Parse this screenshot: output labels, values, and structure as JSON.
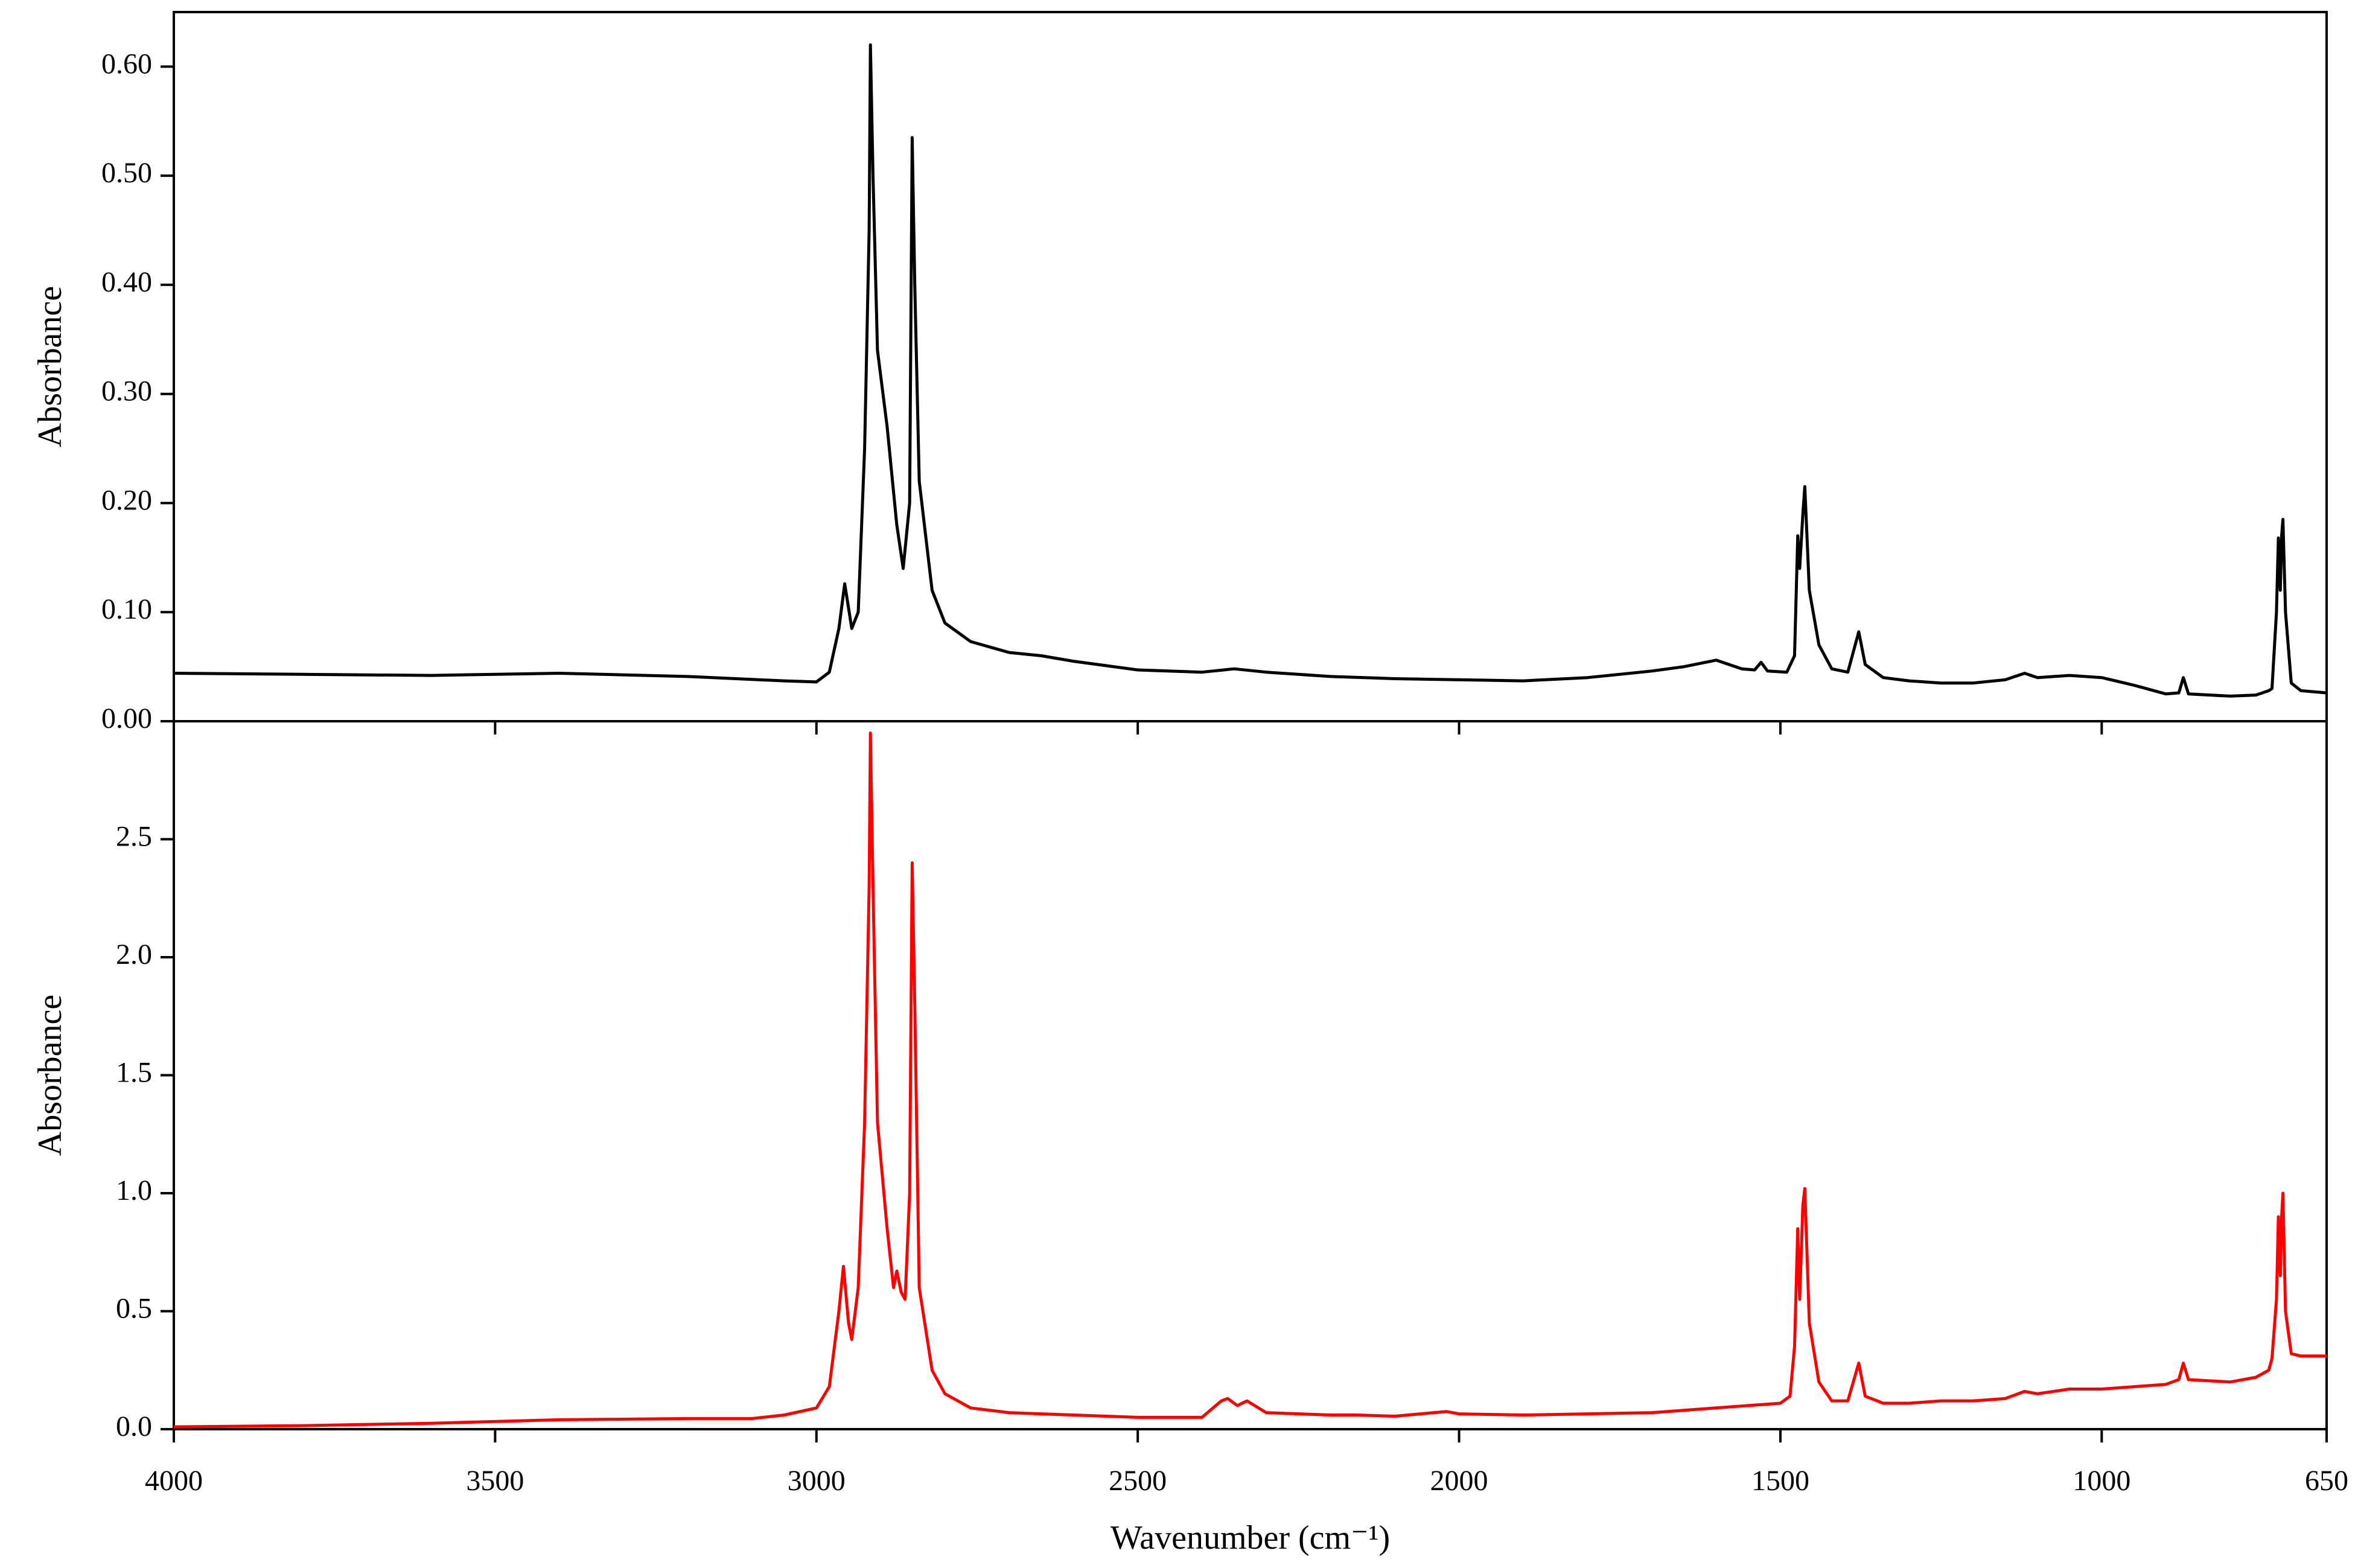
{
  "chart_data": [
    {
      "type": "line",
      "ylabel": "Absorbance",
      "x": [
        4000,
        3800,
        3600,
        3400,
        3200,
        3050,
        3000,
        2980,
        2965,
        2956,
        2945,
        2935,
        2925,
        2918,
        2916,
        2912,
        2905,
        2890,
        2875,
        2865,
        2855,
        2851,
        2847,
        2840,
        2820,
        2800,
        2760,
        2730,
        2700,
        2650,
        2600,
        2500,
        2400,
        2350,
        2300,
        2200,
        2100,
        2000,
        1900,
        1800,
        1700,
        1650,
        1600,
        1560,
        1540,
        1530,
        1520,
        1490,
        1478,
        1473,
        1470,
        1465,
        1462,
        1455,
        1440,
        1420,
        1395,
        1378,
        1368,
        1340,
        1300,
        1250,
        1200,
        1150,
        1120,
        1100,
        1050,
        1000,
        950,
        900,
        880,
        873,
        865,
        800,
        760,
        740,
        735,
        728,
        725,
        722,
        720,
        718,
        714,
        705,
        690,
        650
      ],
      "series": [
        {
          "color": "#000000",
          "values": [
            0.044,
            0.043,
            0.042,
            0.044,
            0.041,
            0.037,
            0.036,
            0.045,
            0.085,
            0.126,
            0.085,
            0.1,
            0.25,
            0.45,
            0.62,
            0.5,
            0.34,
            0.27,
            0.18,
            0.14,
            0.2,
            0.535,
            0.4,
            0.22,
            0.12,
            0.09,
            0.073,
            0.068,
            0.063,
            0.06,
            0.055,
            0.047,
            0.045,
            0.048,
            0.045,
            0.041,
            0.039,
            0.038,
            0.037,
            0.04,
            0.046,
            0.05,
            0.056,
            0.048,
            0.047,
            0.054,
            0.046,
            0.045,
            0.06,
            0.17,
            0.14,
            0.19,
            0.215,
            0.12,
            0.07,
            0.048,
            0.045,
            0.082,
            0.052,
            0.04,
            0.037,
            0.035,
            0.035,
            0.038,
            0.044,
            0.04,
            0.042,
            0.04,
            0.033,
            0.025,
            0.026,
            0.04,
            0.025,
            0.023,
            0.024,
            0.028,
            0.03,
            0.1,
            0.168,
            0.12,
            0.17,
            0.185,
            0.1,
            0.035,
            0.028,
            0.026
          ]
        }
      ],
      "xlim": [
        4000,
        650
      ],
      "ylim": [
        0,
        0.65
      ],
      "yticks": [
        {
          "value": 0,
          "label": "0.00"
        },
        {
          "value": 0.1,
          "label": "0.10"
        },
        {
          "value": 0.2,
          "label": "0.20"
        },
        {
          "value": 0.3,
          "label": "0.30"
        },
        {
          "value": 0.4,
          "label": "0.40"
        },
        {
          "value": 0.5,
          "label": "0.50"
        },
        {
          "value": 0.6,
          "label": "0.60"
        }
      ]
    },
    {
      "type": "line",
      "xlabel": "Wavenumber (cm⁻¹)",
      "ylabel": "Absorbance",
      "x": [
        4000,
        3800,
        3600,
        3400,
        3200,
        3100,
        3050,
        3000,
        2980,
        2965,
        2958,
        2950,
        2945,
        2935,
        2925,
        2918,
        2916,
        2912,
        2905,
        2890,
        2880,
        2875,
        2868,
        2862,
        2855,
        2851,
        2847,
        2840,
        2820,
        2800,
        2760,
        2730,
        2700,
        2650,
        2600,
        2500,
        2400,
        2370,
        2360,
        2345,
        2330,
        2300,
        2200,
        2160,
        2100,
        2020,
        2000,
        1900,
        1800,
        1700,
        1600,
        1500,
        1485,
        1478,
        1473,
        1470,
        1465,
        1462,
        1455,
        1440,
        1420,
        1395,
        1378,
        1368,
        1340,
        1300,
        1250,
        1200,
        1150,
        1120,
        1100,
        1050,
        1000,
        950,
        900,
        880,
        873,
        865,
        800,
        760,
        740,
        735,
        728,
        725,
        722,
        720,
        718,
        714,
        705,
        690,
        650
      ],
      "series": [
        {
          "color": "#ff0000",
          "values": [
            0.01,
            0.015,
            0.025,
            0.04,
            0.045,
            0.045,
            0.06,
            0.09,
            0.18,
            0.5,
            0.69,
            0.45,
            0.38,
            0.6,
            1.3,
            2.3,
            2.95,
            2.3,
            1.3,
            0.85,
            0.6,
            0.67,
            0.58,
            0.55,
            1.0,
            2.4,
            1.8,
            0.6,
            0.25,
            0.15,
            0.09,
            0.08,
            0.07,
            0.065,
            0.06,
            0.05,
            0.05,
            0.12,
            0.13,
            0.1,
            0.12,
            0.07,
            0.06,
            0.06,
            0.055,
            0.075,
            0.065,
            0.06,
            0.065,
            0.07,
            0.09,
            0.11,
            0.14,
            0.35,
            0.85,
            0.55,
            0.95,
            1.02,
            0.45,
            0.2,
            0.12,
            0.12,
            0.28,
            0.14,
            0.11,
            0.11,
            0.12,
            0.12,
            0.13,
            0.16,
            0.15,
            0.17,
            0.17,
            0.18,
            0.19,
            0.21,
            0.28,
            0.21,
            0.2,
            0.22,
            0.25,
            0.3,
            0.55,
            0.9,
            0.65,
            0.9,
            1.0,
            0.5,
            0.32,
            0.31,
            0.31
          ]
        }
      ],
      "xlim": [
        4000,
        650
      ],
      "xticks": [
        4000,
        3500,
        3000,
        2500,
        2000,
        1500,
        1000,
        650
      ],
      "ylim": [
        0,
        3.0
      ],
      "yticks": [
        {
          "value": 0,
          "label": "0.0"
        },
        0.5,
        {
          "value": 1,
          "label": "1.0"
        },
        1.5,
        {
          "value": 2,
          "label": "2.0"
        },
        2.5
      ]
    }
  ]
}
